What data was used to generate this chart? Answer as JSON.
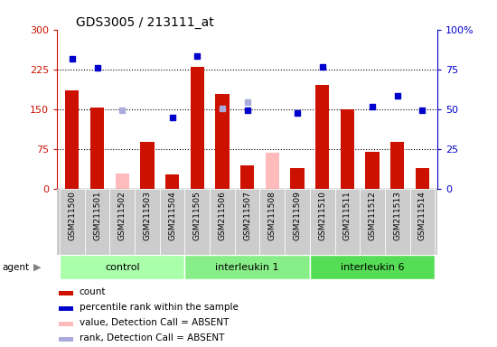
{
  "title": "GDS3005 / 213111_at",
  "samples": [
    "GSM211500",
    "GSM211501",
    "GSM211502",
    "GSM211503",
    "GSM211504",
    "GSM211505",
    "GSM211506",
    "GSM211507",
    "GSM211508",
    "GSM211509",
    "GSM211510",
    "GSM211511",
    "GSM211512",
    "GSM211513",
    "GSM211514"
  ],
  "groups": [
    {
      "name": "control",
      "start": 0,
      "end": 4,
      "color": "#aaffaa"
    },
    {
      "name": "interleukin 1",
      "start": 5,
      "end": 9,
      "color": "#88ee88"
    },
    {
      "name": "interleukin 6",
      "start": 10,
      "end": 14,
      "color": "#55dd55"
    }
  ],
  "count_present": [
    185,
    153,
    null,
    88,
    28,
    230,
    178,
    45,
    null,
    40,
    195,
    150,
    70,
    88,
    40
  ],
  "count_absent": [
    null,
    null,
    30,
    null,
    null,
    null,
    null,
    null,
    68,
    null,
    null,
    null,
    null,
    null,
    null
  ],
  "rank_present": [
    245,
    228,
    null,
    null,
    135,
    250,
    null,
    148,
    null,
    143,
    230,
    null,
    155,
    175,
    148
  ],
  "rank_absent": [
    null,
    null,
    148,
    null,
    null,
    null,
    152,
    163,
    null,
    null,
    null,
    null,
    null,
    null,
    null
  ],
  "left_ylim": [
    0,
    300
  ],
  "right_ylim": [
    0,
    100
  ],
  "left_yticks": [
    0,
    75,
    150,
    225,
    300
  ],
  "right_yticks": [
    0,
    25,
    50,
    75,
    100
  ],
  "right_yticklabels": [
    "0",
    "25",
    "50",
    "75",
    "100%"
  ],
  "bar_color_present": "#cc1100",
  "bar_color_absent": "#ffbbbb",
  "rank_color_present": "#0000cc",
  "rank_color_absent": "#aaaadd",
  "left_axis_color": "#cc1100",
  "right_axis_color": "#0000cc",
  "sample_box_color": "#cccccc",
  "agent_label": "agent"
}
